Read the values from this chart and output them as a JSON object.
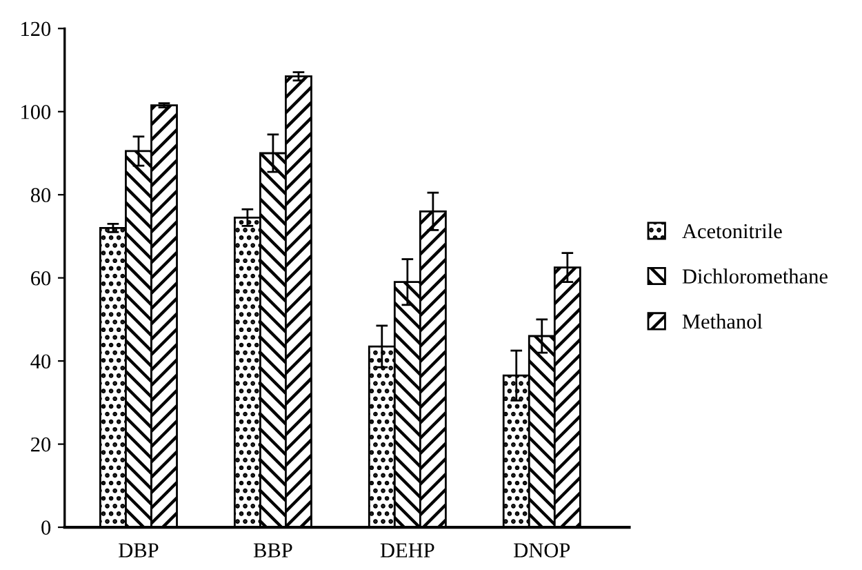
{
  "chart_data": {
    "type": "bar",
    "categories": [
      "DBP",
      "BBP",
      "DEHP",
      "DNOP"
    ],
    "series": [
      {
        "name": "Acetonitrile",
        "color": "#000000",
        "values": [
          72,
          74.5,
          43.5,
          36.5
        ],
        "errors": [
          1,
          2,
          5,
          6
        ]
      },
      {
        "name": "Dichloromethane",
        "color": "#000000",
        "values": [
          90.5,
          90,
          59,
          46
        ],
        "errors": [
          3.5,
          4.5,
          5.5,
          4
        ]
      },
      {
        "name": "Methanol",
        "color": "#000000",
        "values": [
          101.5,
          108.5,
          76,
          62.5
        ],
        "errors": [
          0.5,
          1,
          4.5,
          3.5
        ]
      }
    ],
    "ylim": [
      0,
      120
    ],
    "yticks": [
      0,
      20,
      40,
      60,
      80,
      100,
      120
    ],
    "grid": false,
    "legend": "right"
  }
}
